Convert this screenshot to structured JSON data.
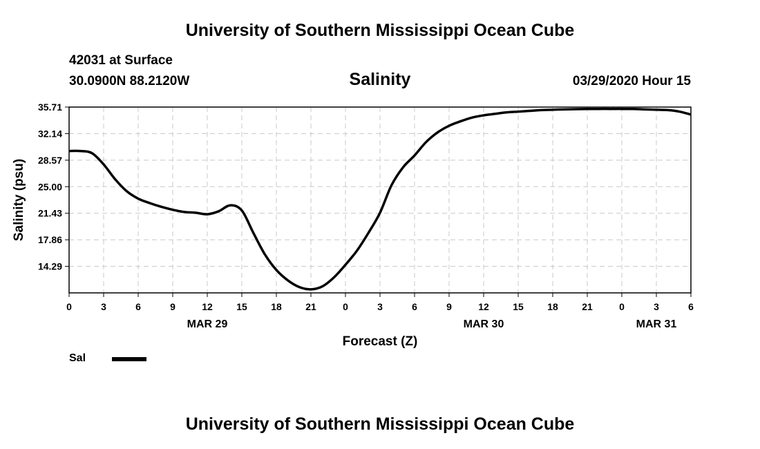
{
  "header": {
    "title": "University of Southern Mississippi Ocean Cube",
    "station": "42031 at Surface",
    "coords": "30.0900N 88.2120W",
    "subtitle": "Salinity",
    "date": "03/29/2020 Hour 15"
  },
  "footer": {
    "title": "University of Southern Mississippi Ocean Cube"
  },
  "chart_data": {
    "type": "line",
    "title": "Salinity",
    "xlabel": "Forecast (Z)",
    "ylabel": "Salinity (psu)",
    "ylim": [
      10.72,
      35.71
    ],
    "xlim": [
      0,
      54
    ],
    "y_ticks": [
      "35.71",
      "32.14",
      "28.57",
      "25.00",
      "21.43",
      "17.86",
      "14.29"
    ],
    "y_tick_values": [
      35.71,
      32.14,
      28.57,
      25.0,
      21.43,
      17.86,
      14.29
    ],
    "x_ticks": [
      "0",
      "3",
      "6",
      "9",
      "12",
      "15",
      "18",
      "21",
      "0",
      "3",
      "6",
      "9",
      "12",
      "15",
      "18",
      "21",
      "0",
      "3",
      "6"
    ],
    "x_tick_hours": [
      0,
      3,
      6,
      9,
      12,
      15,
      18,
      21,
      24,
      27,
      30,
      33,
      36,
      39,
      42,
      45,
      48,
      51,
      54
    ],
    "date_labels": [
      {
        "label": "MAR 29",
        "hour": 12
      },
      {
        "label": "MAR 30",
        "hour": 36
      },
      {
        "label": "MAR 31",
        "hour": 51
      }
    ],
    "grid": true,
    "legend": {
      "position": "bottom-left",
      "entries": [
        "Sal"
      ]
    },
    "series": [
      {
        "name": "Sal",
        "color": "#000000",
        "x": [
          0,
          1,
          2,
          3,
          4,
          5,
          6,
          7,
          8,
          9,
          10,
          11,
          12,
          13,
          14,
          15,
          16,
          17,
          18,
          19,
          20,
          21,
          22,
          23,
          24,
          25,
          26,
          27,
          28,
          29,
          30,
          31,
          32,
          33,
          34,
          35,
          36,
          37,
          38,
          39,
          40,
          41,
          42,
          43,
          44,
          45,
          46,
          47,
          48,
          49,
          50,
          51,
          52,
          53,
          54
        ],
        "values": [
          29.8,
          29.8,
          29.5,
          28.0,
          26.0,
          24.4,
          23.4,
          22.8,
          22.3,
          21.9,
          21.6,
          21.5,
          21.3,
          21.7,
          22.5,
          21.8,
          18.8,
          15.9,
          13.8,
          12.4,
          11.5,
          11.2,
          11.6,
          12.8,
          14.5,
          16.4,
          18.8,
          21.5,
          25.2,
          27.6,
          29.2,
          31.0,
          32.3,
          33.2,
          33.8,
          34.3,
          34.6,
          34.8,
          35.0,
          35.1,
          35.2,
          35.3,
          35.35,
          35.4,
          35.43,
          35.45,
          35.46,
          35.46,
          35.46,
          35.45,
          35.4,
          35.35,
          35.3,
          35.1,
          34.7
        ]
      }
    ]
  }
}
